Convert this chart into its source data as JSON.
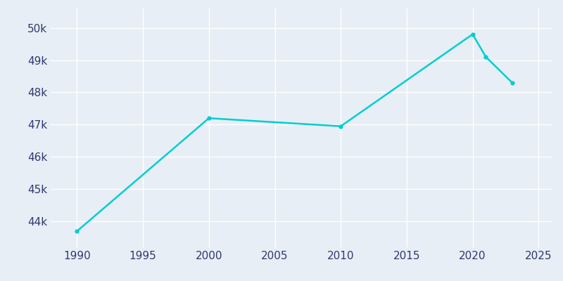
{
  "years": [
    1990,
    2000,
    2010,
    2020,
    2021,
    2023
  ],
  "population": [
    43700,
    47200,
    46950,
    49800,
    49100,
    48300
  ],
  "line_color": "#00CED1",
  "marker_color": "#00CED1",
  "bg_color": "#E8EEF5",
  "plot_bg_color": "#E8EEF5",
  "grid_color": "#FFFFFF",
  "tick_color": "#2E3A6E",
  "ylim": [
    43200,
    50600
  ],
  "xlim": [
    1988,
    2026
  ],
  "xticks": [
    1990,
    1995,
    2000,
    2005,
    2010,
    2015,
    2020,
    2025
  ],
  "yticks": [
    44000,
    45000,
    46000,
    47000,
    48000,
    49000,
    50000
  ],
  "figsize": [
    8.0,
    4.0
  ],
  "dpi": 100
}
